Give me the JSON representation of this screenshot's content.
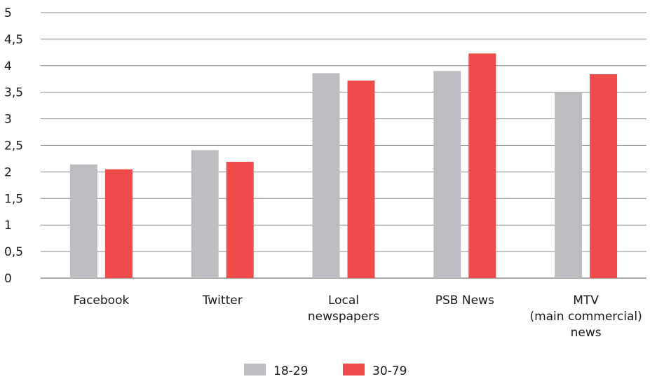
{
  "chart_data": {
    "type": "bar",
    "categories": [
      [
        "Facebook"
      ],
      [
        "Twitter"
      ],
      [
        "Local",
        "newspapers"
      ],
      [
        "PSB News"
      ],
      [
        "MTV",
        "(main commercial)",
        "news"
      ]
    ],
    "series": [
      {
        "name": "18-29",
        "color": "#bcbdc0",
        "values": [
          2.14,
          2.41,
          3.86,
          3.9,
          3.5
        ]
      },
      {
        "name": "30-79",
        "color": "#ef4b4b",
        "values": [
          2.05,
          2.19,
          3.72,
          4.23,
          3.84
        ]
      }
    ],
    "yticks": [
      "0",
      "0,5",
      "1",
      "1,5",
      "2",
      "2,5",
      "3",
      "3,5",
      "4",
      "4,5",
      "5"
    ],
    "ylim": [
      0,
      5
    ],
    "grid": true,
    "legend_position": "bottom-center"
  }
}
